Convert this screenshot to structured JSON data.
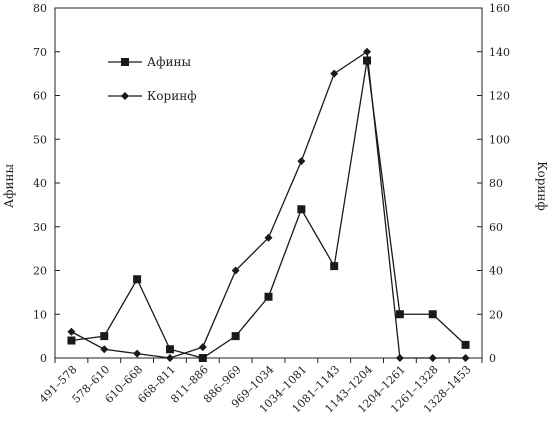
{
  "chart_data": {
    "type": "line",
    "categories": [
      "491–578",
      "578–610",
      "610–668",
      "668–811",
      "811–886",
      "886–969",
      "969–1034",
      "1034–1081",
      "1081–1143",
      "1143–1204",
      "1204–1261",
      "1261–1328",
      "1328–1453"
    ],
    "series": [
      {
        "name": "Афины",
        "axis": "left",
        "marker": "square",
        "values": [
          4,
          5,
          18,
          2,
          0,
          5,
          14,
          34,
          21,
          68,
          10,
          10,
          3
        ]
      },
      {
        "name": "Коринф",
        "axis": "right",
        "marker": "diamond",
        "values": [
          12,
          4,
          2,
          0,
          5,
          40,
          55,
          90,
          130,
          140,
          0,
          0,
          0
        ]
      }
    ],
    "ylabel": "Афины",
    "y2label": "Коринф",
    "ylim": [
      0,
      80
    ],
    "y2lim": [
      0,
      160
    ],
    "yticks": [
      0,
      10,
      20,
      30,
      40,
      50,
      60,
      70,
      80
    ],
    "y2ticks": [
      0,
      20,
      40,
      60,
      80,
      100,
      120,
      140,
      160
    ],
    "legend": "top-left",
    "grid": false
  }
}
